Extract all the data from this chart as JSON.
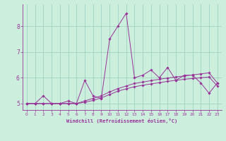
{
  "x_values": [
    0,
    1,
    2,
    3,
    4,
    5,
    6,
    7,
    8,
    9,
    10,
    11,
    12,
    13,
    14,
    15,
    16,
    17,
    18,
    19,
    20,
    21,
    22,
    23
  ],
  "line1_y": [
    5.0,
    5.0,
    5.3,
    5.0,
    5.0,
    5.1,
    5.0,
    5.9,
    5.3,
    5.2,
    7.5,
    8.0,
    8.5,
    6.0,
    6.1,
    6.3,
    6.0,
    6.4,
    5.9,
    6.1,
    6.1,
    5.8,
    5.4,
    5.8
  ],
  "line2_y": [
    5.0,
    5.0,
    5.0,
    5.0,
    5.0,
    5.0,
    5.0,
    5.1,
    5.2,
    5.3,
    5.45,
    5.58,
    5.68,
    5.78,
    5.83,
    5.89,
    5.94,
    5.99,
    6.03,
    6.07,
    6.11,
    6.15,
    6.19,
    5.8
  ],
  "line3_y": [
    5.0,
    5.0,
    5.0,
    5.0,
    5.0,
    5.0,
    5.0,
    5.05,
    5.12,
    5.22,
    5.35,
    5.48,
    5.57,
    5.65,
    5.71,
    5.76,
    5.81,
    5.86,
    5.9,
    5.94,
    5.97,
    6.0,
    6.03,
    5.68
  ],
  "bg_color": "#cceedd",
  "line_color": "#993399",
  "grid_color": "#99ccbb",
  "xlabel": "Windchill (Refroidissement éolien,°C)",
  "xlim": [
    -0.5,
    23.5
  ],
  "ylim": [
    4.75,
    8.85
  ],
  "yticks": [
    5,
    6,
    7,
    8
  ],
  "xticks": [
    0,
    1,
    2,
    3,
    4,
    5,
    6,
    7,
    8,
    9,
    10,
    11,
    12,
    13,
    14,
    15,
    16,
    17,
    18,
    19,
    20,
    21,
    22,
    23
  ]
}
